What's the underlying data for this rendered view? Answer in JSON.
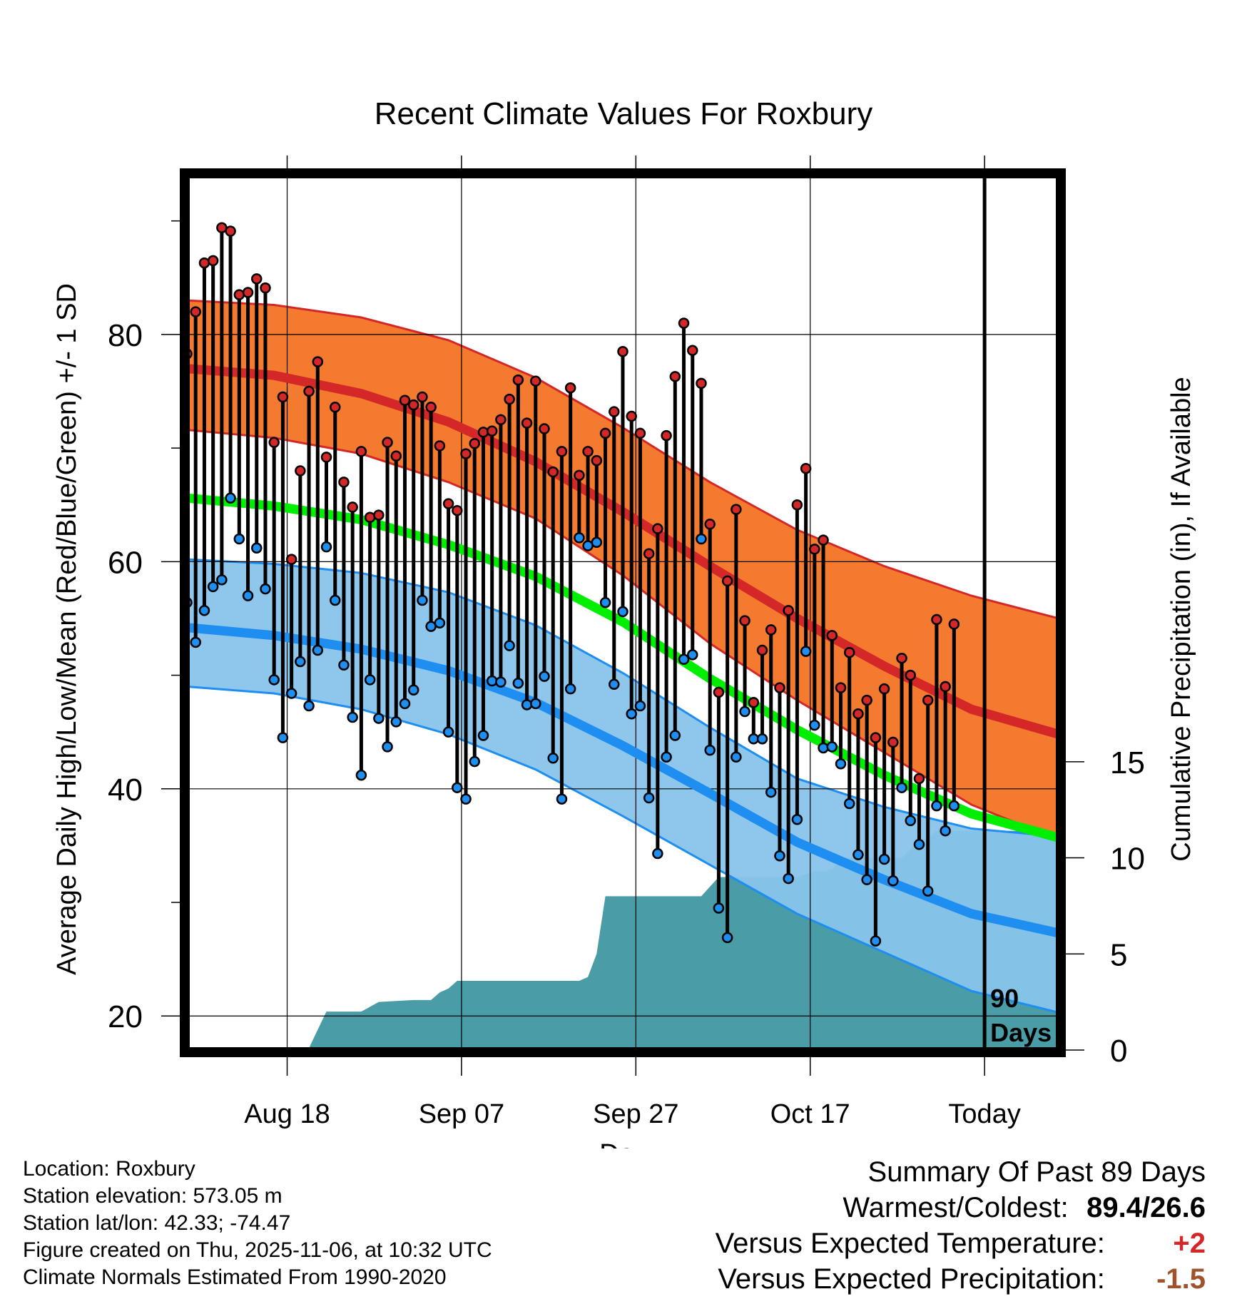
{
  "chart_data": {
    "type": "line",
    "title": "Recent Climate Values For Roxbury",
    "xlabel": "Day",
    "ylabel": "Average Daily High/Low/Mean (Red/Blue/Green) +/- 1 SD",
    "y2label": "Cumulative Precipitation (in), If Available",
    "ylim": [
      17,
      94
    ],
    "y2lim": [
      0,
      45.5
    ],
    "yticks": [
      20,
      40,
      60,
      80
    ],
    "y2ticks": [
      0,
      5,
      10,
      15
    ],
    "xlim": [
      0,
      100
    ],
    "xticks": [
      {
        "day": 11.5,
        "label": "Aug 18"
      },
      {
        "day": 31.5,
        "label": "Sep 07"
      },
      {
        "day": 51.5,
        "label": "Sep 27"
      },
      {
        "day": 71.5,
        "label": "Oct 17"
      },
      {
        "day": 91.5,
        "label": "Today"
      }
    ],
    "today_day": 91.5,
    "period_label": [
      "90",
      "Days"
    ],
    "colors": {
      "high_band": "#f47a30",
      "high_mean": "#d42828",
      "low_band": "#88c4ea",
      "low_mean": "#1e8ef0",
      "mean_line": "#00ee00",
      "precip": "#4a9ca6",
      "high_dot": "#d42828",
      "low_dot": "#1e8ef0"
    },
    "normals": {
      "day": [
        0,
        10,
        20,
        30,
        40,
        50,
        60,
        70,
        80,
        90,
        100
      ],
      "high_mean": [
        77,
        76.4,
        74.8,
        72.3,
        68.8,
        64.4,
        59.6,
        55,
        50.8,
        47,
        44.8
      ],
      "high_upper": [
        83,
        82.6,
        81.5,
        79.5,
        76.2,
        71.8,
        67,
        62.8,
        59.6,
        57,
        55
      ],
      "high_lower": [
        71.6,
        70.9,
        69.5,
        67,
        63.8,
        58.8,
        52.8,
        47.8,
        43.2,
        38.6,
        35.5
      ],
      "mean_line": [
        65.6,
        64.9,
        63.7,
        61.5,
        58.7,
        54.7,
        49.7,
        45.2,
        41.2,
        37.8,
        35.7
      ],
      "low_mean": [
        54.2,
        53.5,
        52.3,
        50.4,
        47.6,
        43.8,
        39.6,
        35.3,
        32,
        29,
        27.3
      ],
      "low_upper": [
        60.2,
        59.8,
        59,
        57.3,
        54.4,
        50.2,
        45.4,
        40.9,
        38.4,
        36.5,
        35.8
      ],
      "low_lower": [
        49,
        48.4,
        47,
        44.8,
        41.7,
        37.6,
        33.3,
        29,
        25.6,
        22.2,
        20.3
      ]
    },
    "daily_high": [
      78.3,
      82,
      86.3,
      86.5,
      89.4,
      89.1,
      83.5,
      83.7,
      84.9,
      84.1,
      70.5,
      74.5,
      60.2,
      68,
      75,
      77.6,
      69.2,
      73.6,
      67,
      64.8,
      69.7,
      63.9,
      64.1,
      70.5,
      69.3,
      74.2,
      73.8,
      74.5,
      73.6,
      70.2,
      65.1,
      64.5,
      69.5,
      70.4,
      71.4,
      71.5,
      72.5,
      74.3,
      76,
      72.2,
      75.9,
      71.7,
      67.9,
      69.7,
      75.3,
      67.6,
      69.7,
      68.9,
      71.3,
      73.2,
      78.5,
      72.8,
      71.3,
      60.7,
      62.9,
      71.1,
      76.3,
      81,
      78.6,
      75.7,
      63.3,
      48.5,
      58.3,
      64.6,
      54.8,
      47.6,
      52.2,
      54,
      48.9,
      55.7,
      65,
      68.2,
      61.1,
      61.9,
      53.5,
      48.9,
      52,
      46.6,
      47.8,
      44.5,
      48.8,
      44.1,
      51.5,
      50,
      40.9,
      47.8,
      54.9,
      49,
      54.5
    ],
    "daily_low": [
      56.4,
      52.9,
      55.7,
      57.8,
      58.4,
      65.6,
      62,
      57,
      61.2,
      57.6,
      49.6,
      44.5,
      48.4,
      51.2,
      47.3,
      52.2,
      61.3,
      56.6,
      50.9,
      46.3,
      41.2,
      49.6,
      46.2,
      43.7,
      45.9,
      47.5,
      48.7,
      56.6,
      54.3,
      54.6,
      45,
      40.1,
      39.1,
      42.4,
      44.7,
      49.5,
      49.4,
      52.6,
      49.3,
      47.4,
      47.5,
      49.9,
      42.7,
      39.1,
      48.8,
      62.1,
      61.4,
      61.7,
      56.4,
      49.2,
      55.6,
      46.6,
      47.3,
      39.2,
      34.3,
      42.8,
      44.7,
      51.4,
      51.8,
      62,
      43.4,
      29.5,
      26.9,
      42.8,
      46.8,
      44.4,
      44.4,
      39.7,
      34.1,
      32.1,
      37.3,
      52.1,
      45.6,
      43.6,
      43.7,
      42.2,
      38.7,
      34.2,
      32,
      26.6,
      33.8,
      31.9,
      40.1,
      37.2,
      35.1,
      31,
      38.5,
      36.3,
      38.5
    ],
    "precip": {
      "day": [
        0,
        8,
        10,
        11.2,
        11.5,
        12,
        13,
        14,
        16,
        17,
        18,
        19,
        20,
        22,
        26,
        27,
        28,
        29,
        30,
        31,
        33,
        38,
        45,
        46,
        47,
        48,
        49,
        50,
        51,
        55,
        59,
        60,
        61,
        62,
        63,
        64,
        66,
        68,
        69,
        70,
        72,
        73,
        74,
        75,
        76,
        81,
        82,
        84,
        85,
        86,
        88,
        89,
        90,
        91.5,
        100
      ],
      "value": [
        0,
        0,
        0.1,
        0.1,
        0.1,
        0.1,
        0.1,
        0.1,
        2,
        2,
        2,
        2,
        2,
        2.5,
        2.6,
        2.6,
        2.6,
        3.0,
        3.2,
        3.6,
        3.6,
        3.6,
        3.6,
        3.8,
        5,
        8,
        8,
        8,
        8,
        8,
        8,
        8.5,
        9,
        9,
        9,
        9,
        9,
        9,
        9,
        9,
        9.3,
        9.3,
        9.4,
        10,
        10,
        10,
        10,
        10.9,
        11,
        11.4,
        11.4,
        11.4,
        11.4,
        11.4,
        11.4
      ]
    }
  },
  "footer": {
    "location": "Location: Roxbury",
    "elevation": "Station elevation: 573.05 m",
    "latlon": "Station lat/lon: 42.33; -74.47",
    "created": "Figure created on Thu, 2025-11-06, at 10:32 UTC",
    "normals": "Climate Normals Estimated From 1990-2020"
  },
  "summary": {
    "title": "Summary Of Past 89 Days",
    "warmest_label": "Warmest/Coldest:",
    "warmest_value": "89.4/26.6",
    "temp_label": "Versus Expected Temperature:",
    "temp_value": "+2",
    "temp_color": "#d42828",
    "precip_label": "Versus Expected Precipitation:",
    "precip_value": "-1.5",
    "precip_color": "#a0522d"
  }
}
